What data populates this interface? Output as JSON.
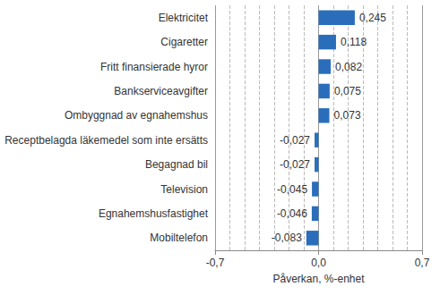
{
  "chart_data": {
    "type": "bar",
    "orientation": "horizontal",
    "x_label": "Påverkan, %-enhet",
    "categories": [
      "Elektricitet",
      "Cigaretter",
      "Fritt finansierade hyror",
      "Bankserviceavgifter",
      "Ombyggnad av egnahemshus",
      "Receptbelagda läkemedel som inte ersätts",
      "Begagnad bil",
      "Television",
      "Egnahemshusfastighet",
      "Mobiltelefon"
    ],
    "values": [
      0.245,
      0.118,
      0.082,
      0.075,
      0.073,
      -0.027,
      -0.027,
      -0.045,
      -0.046,
      -0.083
    ],
    "value_labels": [
      "0,245",
      "0,118",
      "0,082",
      "0,075",
      "0,073",
      "-0,027",
      "-0,027",
      "-0,045",
      "-0,046",
      "-0,083"
    ],
    "data_labels": true,
    "color": "#2a6ebb",
    "xlim": [
      -0.7,
      0.7
    ],
    "xticks": [
      {
        "value": -0.7,
        "label": "-0,7"
      },
      {
        "value": 0,
        "label": "0,0"
      },
      {
        "value": 0.7,
        "label": "0,7"
      }
    ],
    "grid": true
  }
}
